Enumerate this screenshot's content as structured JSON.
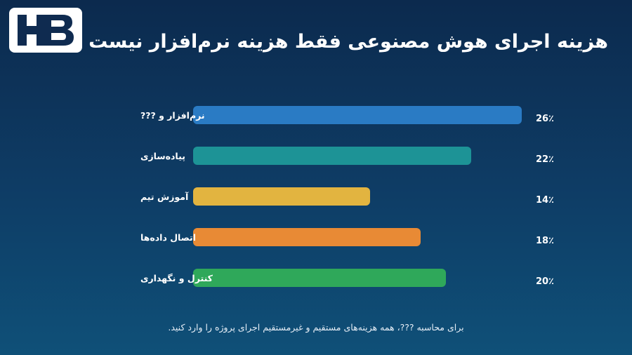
{
  "header": {
    "title": "هزینه اجرای هوش مصنوعی فقط هزینه نرم‌افزار نیست",
    "logo_text": "HB"
  },
  "chart_data": {
    "type": "bar",
    "orientation": "horizontal",
    "categories": [
      "نرم‌افزار و ???",
      "پیاده‌سازی",
      "آموزش تیم",
      "اتصال داده‌ها",
      "کنترل و نگهداری"
    ],
    "values": [
      26,
      22,
      14,
      18,
      20
    ],
    "value_labels": [
      "26٪",
      "22٪",
      "14٪",
      "18٪",
      "20٪"
    ],
    "colors": [
      "#2a7bc4",
      "#1d9396",
      "#e2b440",
      "#e88a35",
      "#2fa85a"
    ],
    "xlim": [
      0,
      26
    ],
    "grid": false,
    "legend": "none"
  },
  "footnote": "برای محاسبه ???، همه هزینه‌های مستقیم و غیرمستقیم اجرای پروژه را وارد کنید."
}
